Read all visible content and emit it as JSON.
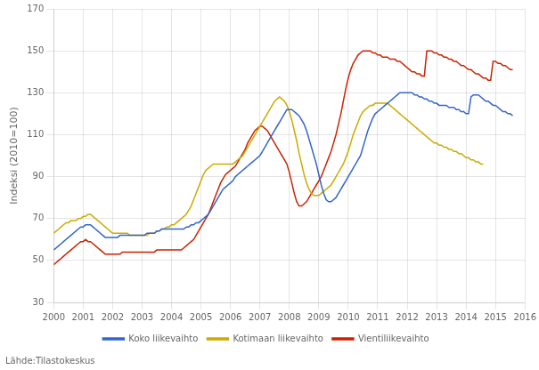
{
  "chart_data": {
    "type": "line",
    "ylabel": "Indeksi (2010=100)",
    "source": "Lähde:Tilastokeskus",
    "x": [
      2000,
      2000.083333,
      2000.166667,
      2000.25,
      2000.333333,
      2000.416667,
      2000.5,
      2000.583333,
      2000.666667,
      2000.75,
      2000.833333,
      2000.916667,
      2001,
      2001.083333,
      2001.166667,
      2001.25,
      2001.333333,
      2001.416667,
      2001.5,
      2001.583333,
      2001.666667,
      2001.75,
      2001.833333,
      2001.916667,
      2002,
      2002.083333,
      2002.166667,
      2002.25,
      2002.333333,
      2002.416667,
      2002.5,
      2002.583333,
      2002.666667,
      2002.75,
      2002.833333,
      2002.916667,
      2003,
      2003.083333,
      2003.166667,
      2003.25,
      2003.333333,
      2003.416667,
      2003.5,
      2003.583333,
      2003.666667,
      2003.75,
      2003.833333,
      2003.916667,
      2004,
      2004.083333,
      2004.166667,
      2004.25,
      2004.333333,
      2004.416667,
      2004.5,
      2004.583333,
      2004.666667,
      2004.75,
      2004.833333,
      2004.916667,
      2005,
      2005.083333,
      2005.166667,
      2005.25,
      2005.333333,
      2005.416667,
      2005.5,
      2005.583333,
      2005.666667,
      2005.75,
      2005.833333,
      2005.916667,
      2006,
      2006.083333,
      2006.166667,
      2006.25,
      2006.333333,
      2006.416667,
      2006.5,
      2006.583333,
      2006.666667,
      2006.75,
      2006.833333,
      2006.916667,
      2007,
      2007.083333,
      2007.166667,
      2007.25,
      2007.333333,
      2007.416667,
      2007.5,
      2007.583333,
      2007.666667,
      2007.75,
      2007.833333,
      2007.916667,
      2008,
      2008.083333,
      2008.166667,
      2008.25,
      2008.333333,
      2008.416667,
      2008.5,
      2008.583333,
      2008.666667,
      2008.75,
      2008.833333,
      2008.916667,
      2009,
      2009.083333,
      2009.166667,
      2009.25,
      2009.333333,
      2009.416667,
      2009.5,
      2009.583333,
      2009.666667,
      2009.75,
      2009.833333,
      2009.916667,
      2010,
      2010.083333,
      2010.166667,
      2010.25,
      2010.333333,
      2010.416667,
      2010.5,
      2010.583333,
      2010.666667,
      2010.75,
      2010.833333,
      2010.916667,
      2011,
      2011.083333,
      2011.166667,
      2011.25,
      2011.333333,
      2011.416667,
      2011.5,
      2011.583333,
      2011.666667,
      2011.75,
      2011.833333,
      2011.916667,
      2012,
      2012.083333,
      2012.166667,
      2012.25,
      2012.333333,
      2012.416667,
      2012.5,
      2012.583333,
      2012.666667,
      2012.75,
      2012.833333,
      2012.916667,
      2013,
      2013.083333,
      2013.166667,
      2013.25,
      2013.333333,
      2013.416667,
      2013.5,
      2013.583333,
      2013.666667,
      2013.75,
      2013.833333,
      2013.916667,
      2014,
      2014.083333,
      2014.166667,
      2014.25,
      2014.333333,
      2014.416667,
      2014.5,
      2014.583333,
      2014.666667,
      2014.75,
      2014.833333,
      2014.916667,
      2015,
      2015.083333,
      2015.166667,
      2015.25,
      2015.333333,
      2015.416667,
      2015.5,
      2015.583333
    ],
    "series": [
      {
        "name": "Koko liikevaihto",
        "color": "#3366cc",
        "values": [
          55,
          56,
          57,
          58,
          59,
          60,
          61,
          62,
          63,
          64,
          65,
          66,
          66,
          67,
          67,
          67,
          66,
          65,
          64,
          63,
          62,
          61,
          61,
          61,
          61,
          61,
          61,
          62,
          62,
          62,
          62,
          62,
          62,
          62,
          62,
          62,
          62,
          62,
          63,
          63,
          63,
          63,
          64,
          64,
          65,
          65,
          65,
          65,
          65,
          65,
          65,
          65,
          65,
          65,
          66,
          66,
          67,
          67,
          68,
          68,
          69,
          70,
          71,
          72,
          74,
          76,
          78,
          80,
          82,
          84,
          85,
          86,
          87,
          88,
          90,
          91,
          92,
          93,
          94,
          95,
          96,
          97,
          98,
          99,
          100,
          102,
          104,
          106,
          108,
          110,
          112,
          114,
          116,
          118,
          120,
          122,
          122,
          122,
          121,
          120,
          119,
          117,
          115,
          112,
          108,
          104,
          100,
          96,
          91,
          86,
          82,
          79,
          78,
          78,
          79,
          80,
          82,
          84,
          86,
          88,
          90,
          92,
          94,
          96,
          98,
          100,
          104,
          108,
          112,
          115,
          118,
          120,
          121,
          122,
          123,
          124,
          125,
          126,
          127,
          128,
          129,
          130,
          130,
          130,
          130,
          130,
          130,
          129,
          129,
          128,
          128,
          127,
          127,
          126,
          126,
          125,
          125,
          124,
          124,
          124,
          124,
          123,
          123,
          123,
          122,
          122,
          121,
          121,
          120,
          120,
          128,
          129,
          129,
          129,
          128,
          127,
          126,
          126,
          125,
          124,
          124,
          123,
          122,
          121,
          121,
          120,
          120,
          119
        ]
      },
      {
        "name": "Kotimaan liikevaihto",
        "color": "#ccaa00",
        "values": [
          63,
          64,
          65,
          66,
          67,
          68,
          68,
          69,
          69,
          69,
          70,
          70,
          71,
          71,
          72,
          72,
          71,
          70,
          69,
          68,
          67,
          66,
          65,
          64,
          63,
          63,
          63,
          63,
          63,
          63,
          63,
          62,
          62,
          62,
          62,
          62,
          62,
          62,
          62,
          63,
          63,
          63,
          64,
          64,
          65,
          65,
          66,
          66,
          67,
          67,
          68,
          69,
          70,
          71,
          72,
          74,
          76,
          79,
          82,
          85,
          88,
          91,
          93,
          94,
          95,
          96,
          96,
          96,
          96,
          96,
          96,
          96,
          96,
          96,
          97,
          98,
          99,
          100,
          102,
          104,
          106,
          108,
          110,
          112,
          114,
          116,
          118,
          120,
          122,
          124,
          126,
          127,
          128,
          127,
          126,
          124,
          121,
          117,
          112,
          107,
          101,
          96,
          91,
          87,
          84,
          82,
          81,
          81,
          81,
          82,
          83,
          84,
          85,
          86,
          88,
          90,
          92,
          94,
          96,
          99,
          102,
          106,
          110,
          113,
          116,
          119,
          121,
          122,
          123,
          124,
          124,
          125,
          125,
          125,
          125,
          125,
          125,
          124,
          123,
          122,
          121,
          120,
          119,
          118,
          117,
          116,
          115,
          114,
          113,
          112,
          111,
          110,
          109,
          108,
          107,
          106,
          106,
          105,
          105,
          104,
          104,
          103,
          103,
          102,
          102,
          101,
          101,
          100,
          99,
          99,
          98,
          98,
          97,
          97,
          96,
          96,
          null,
          null,
          null,
          null,
          null,
          null,
          null,
          null,
          null,
          null,
          null,
          null
        ]
      },
      {
        "name": "Vientiliikevaihto",
        "color": "#cc2200",
        "values": [
          48,
          49,
          50,
          51,
          52,
          53,
          54,
          55,
          56,
          57,
          58,
          59,
          59,
          60,
          59,
          59,
          58,
          57,
          56,
          55,
          54,
          53,
          53,
          53,
          53,
          53,
          53,
          53,
          54,
          54,
          54,
          54,
          54,
          54,
          54,
          54,
          54,
          54,
          54,
          54,
          54,
          54,
          55,
          55,
          55,
          55,
          55,
          55,
          55,
          55,
          55,
          55,
          55,
          56,
          57,
          58,
          59,
          60,
          62,
          64,
          66,
          68,
          70,
          72,
          75,
          78,
          81,
          84,
          87,
          89,
          91,
          92,
          93,
          94,
          95,
          97,
          99,
          101,
          103,
          106,
          108,
          110,
          112,
          113,
          114,
          114,
          113,
          112,
          110,
          108,
          106,
          104,
          102,
          100,
          98,
          96,
          92,
          87,
          82,
          78,
          76,
          76,
          77,
          78,
          80,
          82,
          84,
          86,
          88,
          90,
          93,
          96,
          99,
          102,
          106,
          110,
          115,
          120,
          126,
          132,
          137,
          141,
          144,
          146,
          148,
          149,
          150,
          150,
          150,
          150,
          149,
          149,
          148,
          148,
          147,
          147,
          147,
          146,
          146,
          146,
          145,
          145,
          144,
          143,
          142,
          141,
          140,
          140,
          139,
          139,
          138,
          138,
          150,
          150,
          150,
          149,
          149,
          148,
          148,
          147,
          147,
          146,
          146,
          145,
          145,
          144,
          143,
          143,
          142,
          141,
          141,
          140,
          139,
          139,
          138,
          137,
          137,
          136,
          136,
          145,
          145,
          144,
          144,
          143,
          143,
          142,
          141,
          141
        ]
      }
    ],
    "xlim": [
      2000,
      2016
    ],
    "xticks": [
      2000,
      2001,
      2002,
      2003,
      2004,
      2005,
      2006,
      2007,
      2008,
      2009,
      2010,
      2011,
      2012,
      2013,
      2014,
      2015,
      2016
    ],
    "ylim": [
      30,
      170
    ],
    "yticks": [
      30,
      50,
      70,
      90,
      110,
      130,
      150,
      170
    ],
    "grid": true,
    "legend": "bottom"
  }
}
